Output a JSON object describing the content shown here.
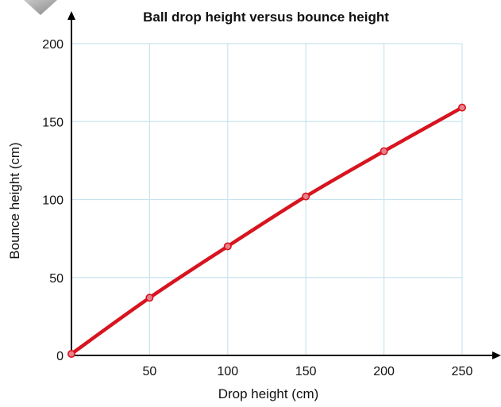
{
  "chart_data": {
    "type": "line",
    "title": "Ball drop height versus bounce height",
    "xlabel": "Drop height (cm)",
    "ylabel": "Bounce height (cm)",
    "xlim": [
      0,
      250
    ],
    "ylim": [
      0,
      200
    ],
    "x_ticks": [
      50,
      100,
      150,
      200,
      250
    ],
    "y_ticks": [
      0,
      50,
      100,
      150,
      200
    ],
    "grid": true,
    "series": [
      {
        "color": "#d7141f",
        "x": [
          0,
          50,
          100,
          150,
          200,
          250
        ],
        "y": [
          1,
          37,
          70,
          102,
          131,
          159
        ]
      }
    ],
    "colors": {
      "line": "#d7141f",
      "grid": "#c9e4ef",
      "axis": "#000000",
      "marker_fill": "#e8808a"
    }
  }
}
